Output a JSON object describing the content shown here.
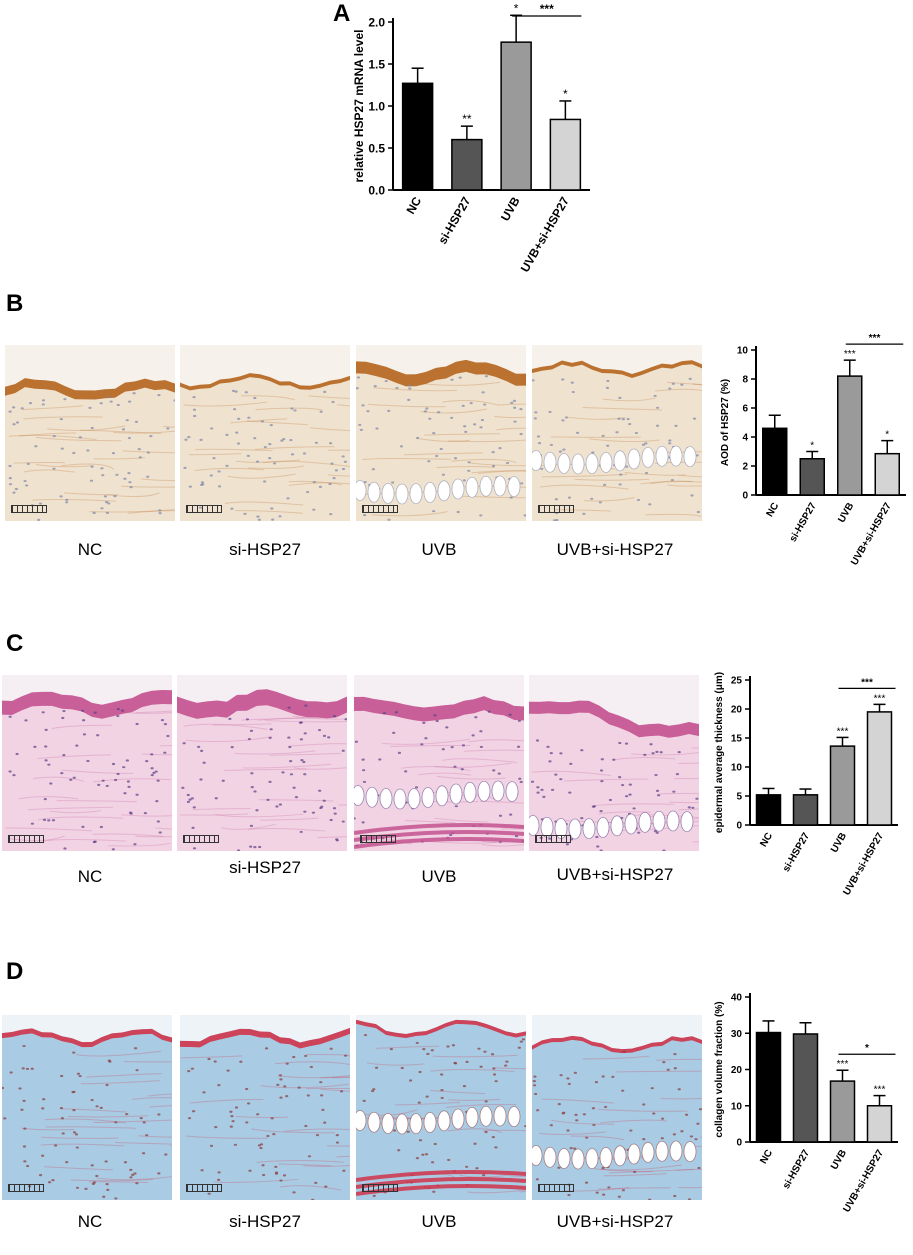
{
  "panels": [
    {
      "letter": "A",
      "captions": []
    },
    {
      "letter": "B",
      "captions": [
        "NC",
        "si-HSP27",
        "UVB",
        "UVB+si-HSP27"
      ]
    },
    {
      "letter": "C",
      "captions": [
        "NC",
        "si-HSP27",
        "UVB",
        "UVB+si-HSP27"
      ]
    },
    {
      "letter": "D",
      "captions": [
        "NC",
        "si-HSP27",
        "UVB",
        "UVB+si-HSP27"
      ]
    }
  ],
  "stains": {
    "ihc": {
      "background": "#f6f1ea",
      "epidermis": "#b5651d",
      "dermis": "#efe2cf",
      "nuclei": "#7d86a8"
    },
    "he": {
      "background": "#f5eef3",
      "epidermis": "#c4528f",
      "dermis": "#f1d3e4",
      "nuclei": "#5a3f86"
    },
    "masson": {
      "background": "#eef3f7",
      "epidermis": "#d0344a",
      "dermis": "#a9cbe3",
      "nuclei": "#8a3a3a"
    }
  },
  "chart_data": [
    {
      "type": "bar",
      "panel": "A",
      "categories": [
        "NC",
        "si-HSP27",
        "UVB",
        "UVB+si-HSP27"
      ],
      "values": [
        1.27,
        0.6,
        1.76,
        0.84
      ],
      "errors": [
        0.18,
        0.16,
        0.32,
        0.22
      ],
      "significance": [
        "",
        "**",
        "*",
        "*"
      ],
      "bracket": {
        "from": 2,
        "to": 3,
        "label": "***"
      },
      "colors": [
        "#000000",
        "#555555",
        "#9a9a9a",
        "#d4d4d4"
      ],
      "ylabel": "relative HSP27 mRNA level",
      "ylim": [
        0,
        2.0
      ],
      "yticks": [
        0.0,
        0.5,
        1.0,
        1.5,
        2.0
      ],
      "ytick_labels": [
        "0.0",
        "0.5",
        "1.0",
        "1.5",
        "2.0"
      ]
    },
    {
      "type": "bar",
      "panel": "B",
      "categories": [
        "NC",
        "si-HSP27",
        "UVB",
        "UVB+si-HSP27"
      ],
      "values": [
        4.6,
        2.5,
        8.2,
        2.85
      ],
      "errors": [
        0.9,
        0.5,
        1.1,
        0.9
      ],
      "significance": [
        "",
        "*",
        "***",
        "*"
      ],
      "bracket": {
        "from": 2,
        "to": 3,
        "label": "***"
      },
      "colors": [
        "#000000",
        "#555555",
        "#9a9a9a",
        "#d4d4d4"
      ],
      "ylabel": "AOD of HSP27 (%)",
      "ylim": [
        0,
        10
      ],
      "yticks": [
        0,
        2,
        4,
        6,
        8,
        10
      ],
      "ytick_labels": [
        "0",
        "2",
        "4",
        "6",
        "8",
        "10"
      ]
    },
    {
      "type": "bar",
      "panel": "C",
      "categories": [
        "NC",
        "si-HSP27",
        "UVB",
        "UVB+si-HSP27"
      ],
      "values": [
        5.2,
        5.2,
        13.6,
        19.5
      ],
      "errors": [
        1.1,
        1.0,
        1.5,
        1.3
      ],
      "significance": [
        "",
        "",
        "***",
        "***"
      ],
      "bracket": {
        "from": 2,
        "to": 3,
        "label": "***"
      },
      "colors": [
        "#000000",
        "#555555",
        "#9a9a9a",
        "#d4d4d4"
      ],
      "ylabel": "epidermal average thickness (μm)",
      "ylim": [
        0,
        25
      ],
      "yticks": [
        0,
        5,
        10,
        15,
        20,
        25
      ],
      "ytick_labels": [
        "0",
        "5",
        "10",
        "15",
        "20",
        "25"
      ]
    },
    {
      "type": "bar",
      "panel": "D",
      "categories": [
        "NC",
        "si-HSP27",
        "UVB",
        "UVB+si-HSP27"
      ],
      "values": [
        30.2,
        29.8,
        16.8,
        10.0
      ],
      "errors": [
        3.2,
        3.1,
        3.0,
        2.8
      ],
      "significance": [
        "",
        "",
        "***",
        "***"
      ],
      "bracket": {
        "from": 2,
        "to": 3,
        "label": "*"
      },
      "colors": [
        "#000000",
        "#555555",
        "#9a9a9a",
        "#d4d4d4"
      ],
      "ylabel": "collagen volume fraction (%)",
      "ylim": [
        0,
        40
      ],
      "yticks": [
        0,
        10,
        20,
        30,
        40
      ],
      "ytick_labels": [
        "0",
        "10",
        "20",
        "30",
        "40"
      ]
    }
  ]
}
